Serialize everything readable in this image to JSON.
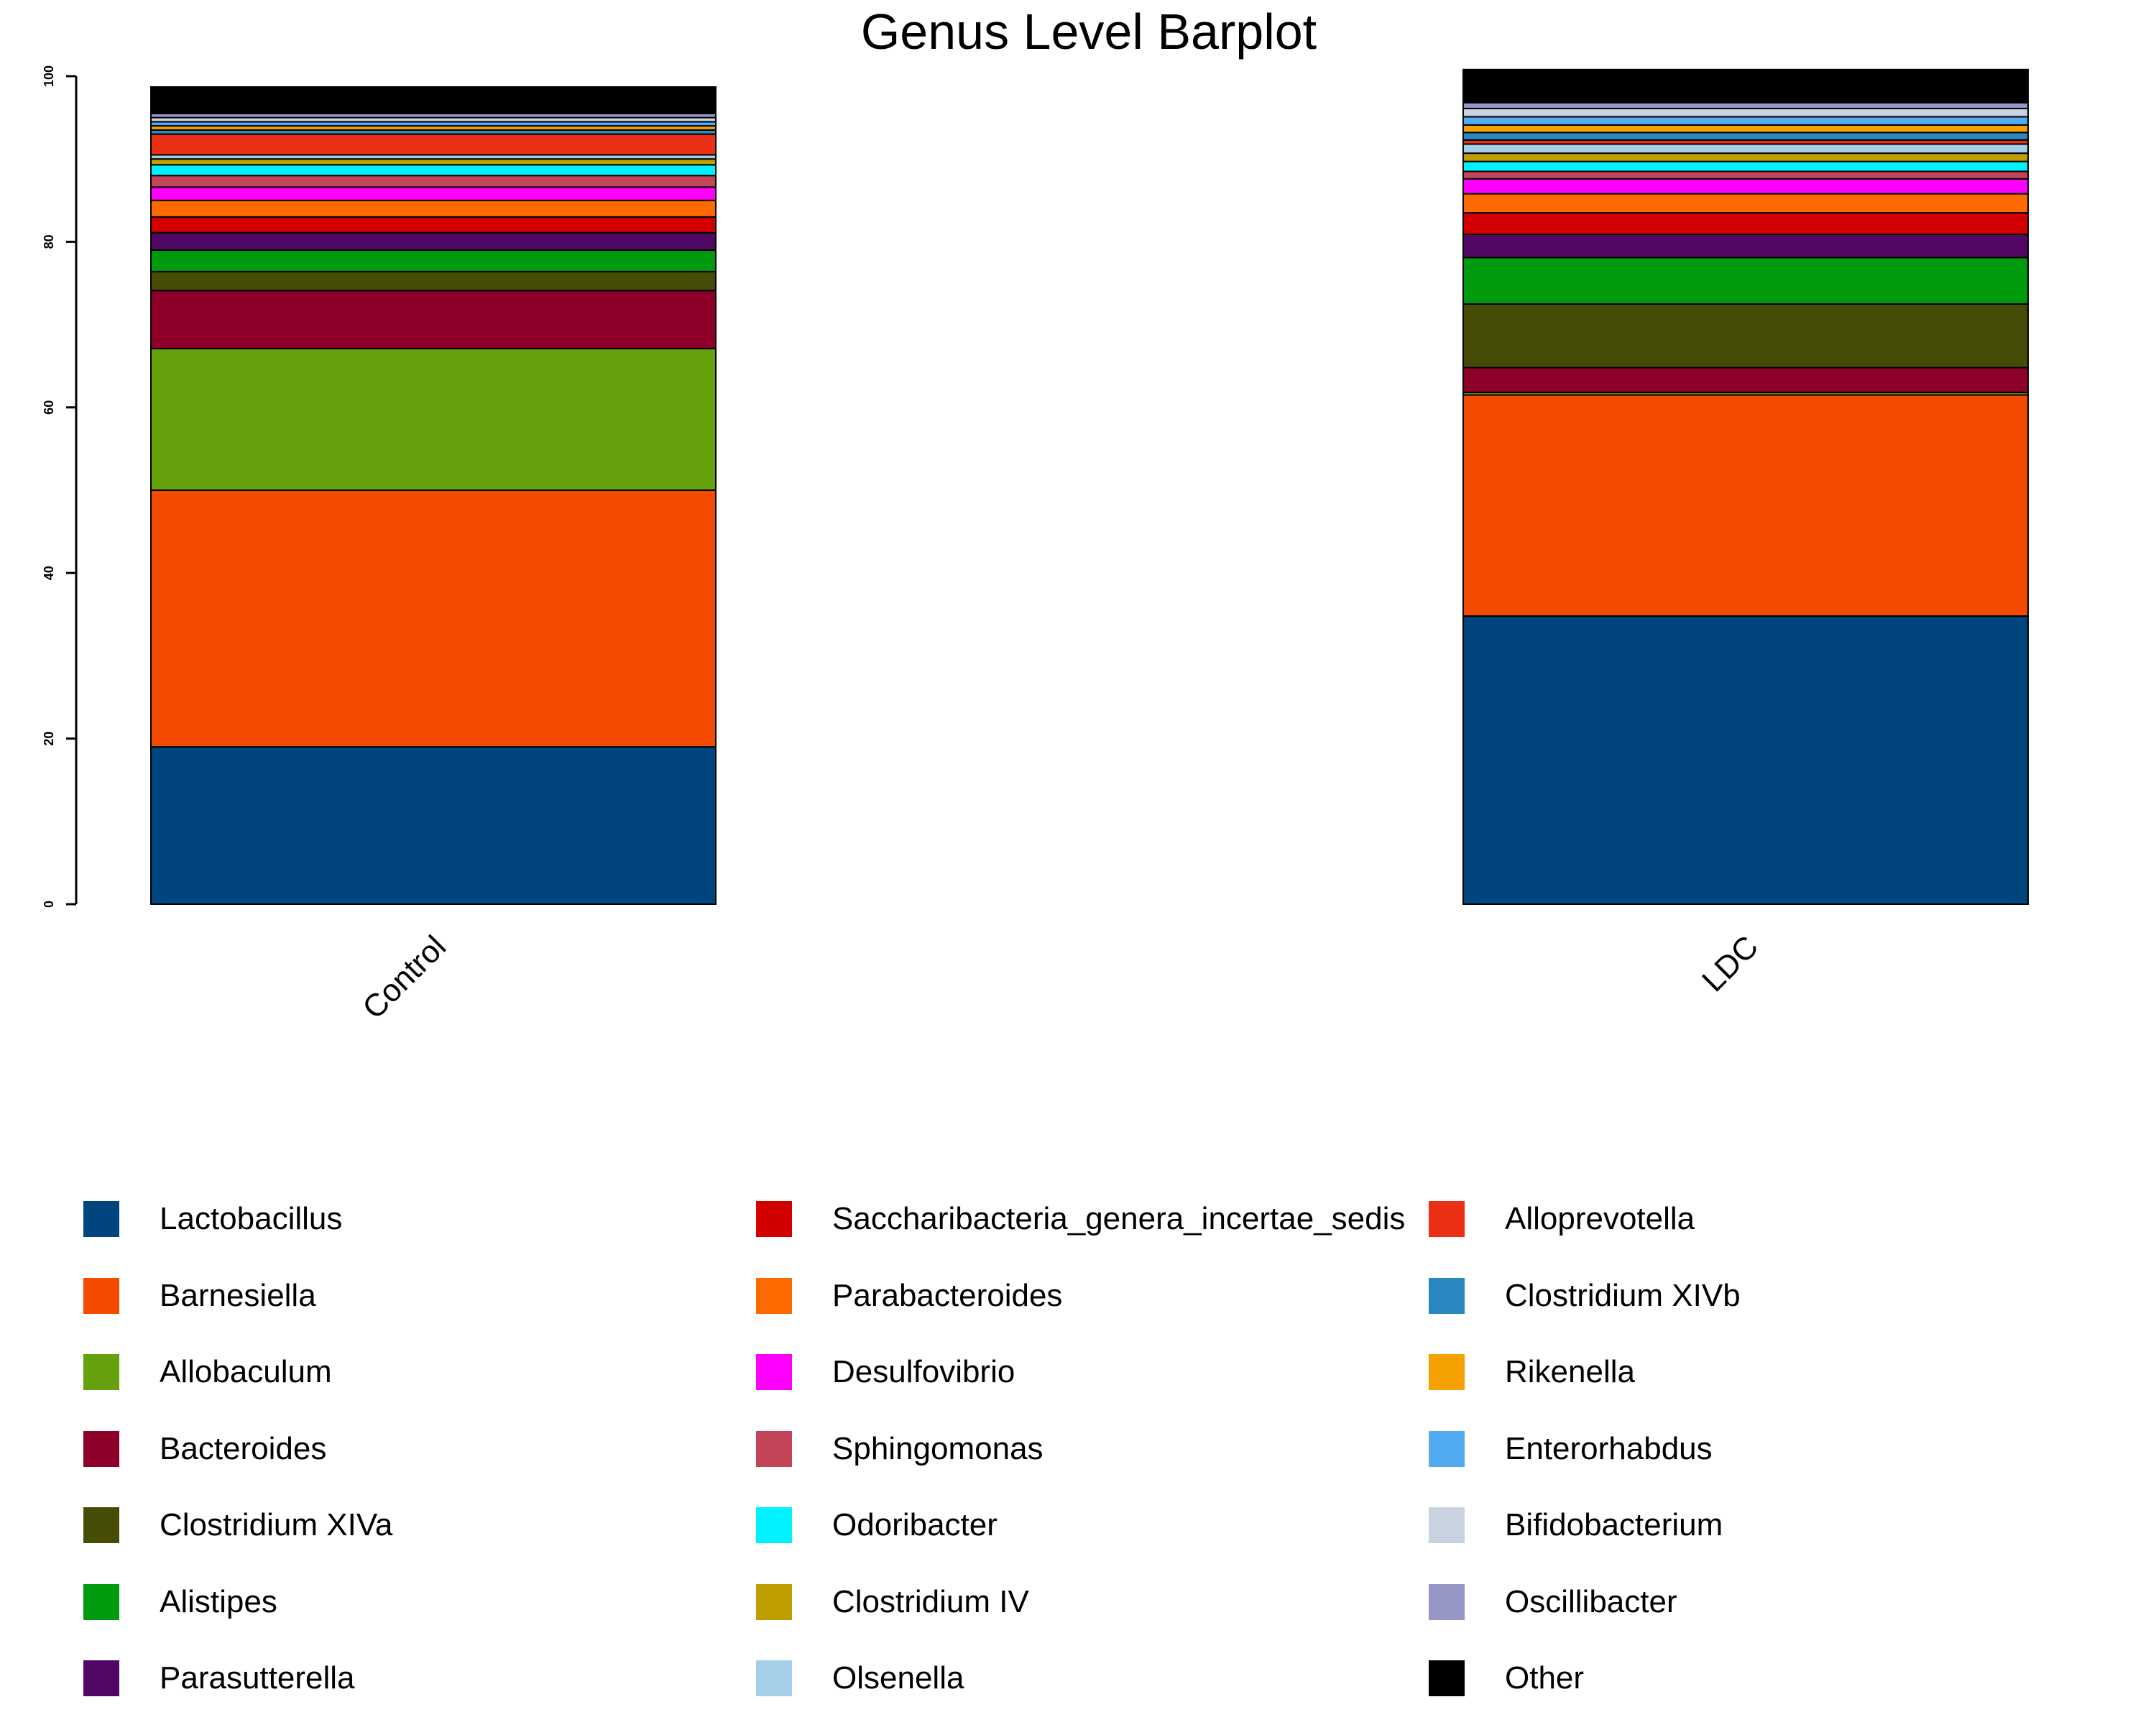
{
  "chart_data": {
    "type": "bar",
    "stacked": true,
    "title": "Genus Level Barplot",
    "xlabel": "",
    "ylabel": "",
    "ylim": [
      0,
      100
    ],
    "yticks": [
      "0",
      "20",
      "40",
      "60",
      "80",
      "100"
    ],
    "categories": [
      "Control",
      "LDC"
    ],
    "series": [
      {
        "name": "Lactobacillus",
        "color": "#00457E",
        "values": [
          19.0,
          34.8
        ]
      },
      {
        "name": "Barnesiella",
        "color": "#F44B00",
        "values": [
          31.0,
          26.7
        ]
      },
      {
        "name": "Allobaculum",
        "color": "#64A10D",
        "values": [
          17.1,
          0.3
        ]
      },
      {
        "name": "Bacteroides",
        "color": "#8E0029",
        "values": [
          7.0,
          3.0
        ]
      },
      {
        "name": "Clostridium XIVa",
        "color": "#464C05",
        "values": [
          2.3,
          7.7
        ]
      },
      {
        "name": "Alistipes",
        "color": "#009A0E",
        "values": [
          2.6,
          5.6
        ]
      },
      {
        "name": "Parasutterella",
        "color": "#510865",
        "values": [
          2.1,
          2.8
        ]
      },
      {
        "name": "Saccharibacteria_genera_incertae_sedis",
        "color": "#D30000",
        "values": [
          1.9,
          2.6
        ]
      },
      {
        "name": "Parabacteroides",
        "color": "#FF6A00",
        "values": [
          2.0,
          2.3
        ]
      },
      {
        "name": "Desulfovibrio",
        "color": "#FF00FF",
        "values": [
          1.6,
          1.8
        ]
      },
      {
        "name": "Sphingomonas",
        "color": "#C34459",
        "values": [
          1.4,
          0.9
        ]
      },
      {
        "name": "Odoribacter",
        "color": "#00F1FF",
        "values": [
          1.3,
          1.2
        ]
      },
      {
        "name": "Clostridium IV",
        "color": "#BF9E00",
        "values": [
          0.7,
          1.0
        ]
      },
      {
        "name": "Olsenella",
        "color": "#A5CEE8",
        "values": [
          0.5,
          1.1
        ]
      },
      {
        "name": "Alloprevotella",
        "color": "#EB3015",
        "values": [
          2.5,
          0.5
        ]
      },
      {
        "name": "Clostridium XIVb",
        "color": "#2988C2",
        "values": [
          0.5,
          0.9
        ]
      },
      {
        "name": "Rikenella",
        "color": "#F7A100",
        "values": [
          0.5,
          0.9
        ]
      },
      {
        "name": "Enterorhabdus",
        "color": "#52ABF0",
        "values": [
          0.5,
          1.0
        ]
      },
      {
        "name": "Bifidobacterium",
        "color": "#C9D3E0",
        "values": [
          0.5,
          1.0
        ]
      },
      {
        "name": "Oscillibacter",
        "color": "#9595C6",
        "values": [
          0.5,
          0.7
        ]
      },
      {
        "name": "Other",
        "color": "#000000",
        "values": [
          3.2,
          4.0
        ]
      }
    ],
    "legend_position": "bottom"
  }
}
